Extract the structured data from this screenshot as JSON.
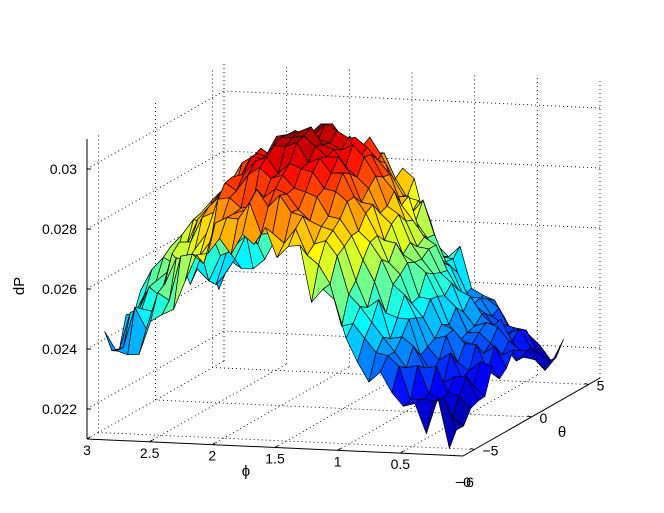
{
  "chart_data": {
    "type": "surface",
    "title": "",
    "xlabel": "ϕ",
    "ylabel": "θ",
    "zlabel": "dP",
    "x_axis": {
      "ticks": [
        3,
        2.5,
        2,
        1.5,
        1,
        0.5
      ],
      "tick_labels": [
        "3",
        "2.5",
        "2",
        "1.5",
        "1",
        "0.5"
      ],
      "range": [
        0,
        3
      ]
    },
    "y_axis": {
      "ticks": [
        -5,
        0,
        5
      ],
      "tick_labels": [
        "−5",
        "0",
        "5"
      ],
      "range": [
        -6,
        6
      ]
    },
    "z_axis": {
      "ticks": [
        0.022,
        0.024,
        0.026,
        0.028,
        0.03
      ],
      "tick_labels": [
        "0.022",
        "0.024",
        "0.026",
        "0.028",
        "0.03"
      ],
      "range": [
        0.021,
        0.031
      ]
    },
    "extra_labels": [
      "−0",
      "−6"
    ],
    "grid": true,
    "colormap": [
      "#00008f",
      "#0000ff",
      "#0080ff",
      "#00ffff",
      "#80ff80",
      "#ffff00",
      "#ff8000",
      "#ff0000",
      "#800000"
    ],
    "clim": [
      0.0215,
      0.0305
    ],
    "surface": {
      "phi": [
        0.2,
        0.6,
        1.0,
        1.4,
        1.8,
        2.2,
        2.6,
        2.95
      ],
      "theta": [
        -5,
        -3,
        -1,
        1,
        3,
        5
      ],
      "dP": [
        [
          0.0218,
          0.0222,
          0.0226,
          0.0228,
          0.0222,
          0.0217
        ],
        [
          0.0226,
          0.0232,
          0.0238,
          0.024,
          0.0234,
          0.0227
        ],
        [
          0.0243,
          0.0255,
          0.0262,
          0.0265,
          0.0257,
          0.0246
        ],
        [
          0.0268,
          0.0283,
          0.029,
          0.0291,
          0.0285,
          0.027
        ],
        [
          0.0277,
          0.0292,
          0.03,
          0.0302,
          0.0295,
          0.0281
        ],
        [
          0.0269,
          0.0284,
          0.0292,
          0.0294,
          0.0286,
          0.0271
        ],
        [
          0.0247,
          0.0261,
          0.0271,
          0.0273,
          0.0262,
          0.025
        ],
        [
          0.0236,
          0.0243,
          0.0254,
          0.0256,
          0.0244,
          0.0238
        ]
      ]
    }
  }
}
